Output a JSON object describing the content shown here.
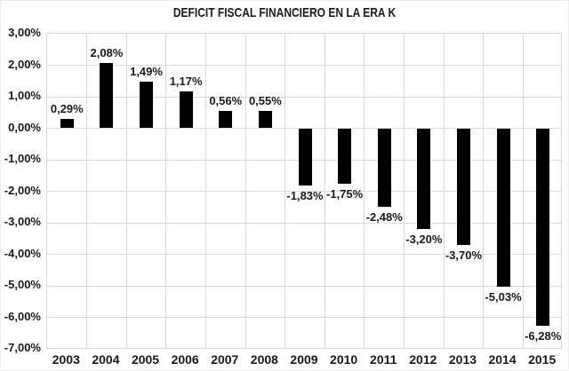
{
  "chart_data": {
    "type": "bar",
    "title": "DEFICIT FISCAL FINANCIERO EN LA ERA K",
    "categories": [
      "2003",
      "2004",
      "2005",
      "2006",
      "2007",
      "2008",
      "2009",
      "2010",
      "2011",
      "2012",
      "2013",
      "2014",
      "2015"
    ],
    "values": [
      0.29,
      2.08,
      1.49,
      1.17,
      0.56,
      0.55,
      -1.83,
      -1.75,
      -2.48,
      -3.2,
      -3.7,
      -5.03,
      -6.28
    ],
    "value_labels": [
      "0,29%",
      "2,08%",
      "1,49%",
      "1,17%",
      "0,56%",
      "0,55%",
      "-1,83%",
      "-1,75%",
      "-2,48%",
      "-3,20%",
      "-3,70%",
      "-5,03%",
      "-6,28%"
    ],
    "xlabel": "",
    "ylabel": "",
    "ylim": [
      -7,
      3
    ],
    "y_tick_values": [
      3,
      2,
      1,
      0,
      -1,
      -2,
      -3,
      -4,
      -5,
      -6,
      -7
    ],
    "y_tick_labels": [
      "3,00%",
      "2,00%",
      "1,00%",
      "0,00%",
      "-1,00%",
      "-2,00%",
      "-3,00%",
      "-4,00%",
      "-5,00%",
      "-6,00%",
      "-7,00%"
    ],
    "grid": true,
    "legend": false,
    "bar_color": "#000000",
    "gridline_color": "#d9d9d9",
    "text_color": "#1a1a1a",
    "background_color": "#ffffff"
  }
}
